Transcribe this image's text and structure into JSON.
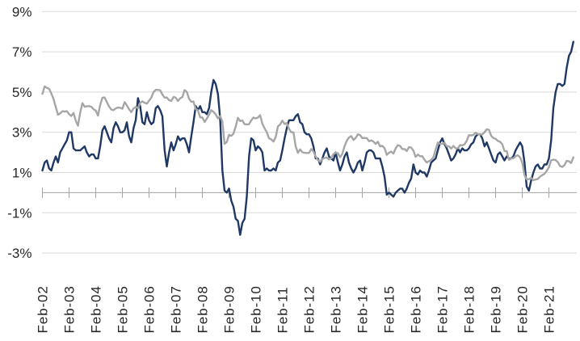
{
  "chart_data": {
    "type": "line",
    "title": "",
    "legend_position": "none",
    "grid": "horizontal",
    "x_tick_labels": [
      "Feb-02",
      "Feb-03",
      "Feb-04",
      "Feb-05",
      "Feb-06",
      "Feb-07",
      "Feb-08",
      "Feb-09",
      "Feb-10",
      "Feb-11",
      "Feb-12",
      "Feb-13",
      "Feb-14",
      "Feb-15",
      "Feb-16",
      "Feb-17",
      "Feb-18",
      "Feb-19",
      "Feb-20",
      "Feb-21"
    ],
    "x_unit": "month",
    "x_range": [
      "Feb-02",
      "Jan-22"
    ],
    "y_tick_labels": [
      "9%",
      "7%",
      "5%",
      "3%",
      "1%",
      "-1%",
      "-3%"
    ],
    "y_ticks": [
      9,
      7,
      5,
      3,
      1,
      -1,
      -3
    ],
    "ylim": [
      -3.9,
      9.6
    ],
    "axis_color": "#a3a3a3",
    "gridline_color": "#d9d9d9",
    "label_color": "#262626",
    "series": [
      {
        "name": "series-navy",
        "color": "#1f3864",
        "values": [
          1.1,
          1.5,
          1.6,
          1.2,
          1.1,
          1.5,
          1.8,
          1.5,
          2.0,
          2.2,
          2.4,
          2.6,
          3.0,
          3.0,
          2.2,
          2.1,
          2.1,
          2.1,
          2.2,
          2.3,
          2.0,
          1.8,
          1.9,
          1.9,
          1.7,
          1.7,
          2.3,
          3.1,
          3.3,
          3.0,
          2.7,
          2.5,
          3.2,
          3.5,
          3.3,
          3.0,
          3.0,
          3.1,
          3.5,
          2.8,
          2.5,
          3.2,
          3.6,
          4.7,
          4.3,
          3.5,
          3.4,
          4.0,
          3.6,
          3.4,
          3.5,
          4.2,
          4.3,
          4.1,
          3.8,
          2.1,
          1.3,
          2.0,
          2.5,
          2.1,
          2.4,
          2.8,
          2.6,
          2.7,
          2.7,
          2.4,
          2.0,
          2.8,
          3.5,
          4.3,
          4.1,
          4.3,
          4.0,
          4.0,
          3.9,
          4.2,
          5.0,
          5.6,
          5.4,
          4.9,
          3.7,
          1.1,
          0.1,
          0.0,
          0.2,
          -0.4,
          -0.7,
          -1.3,
          -1.4,
          -2.1,
          -1.5,
          -1.3,
          -0.2,
          1.8,
          2.7,
          2.6,
          2.1,
          2.3,
          2.2,
          2.0,
          1.1,
          1.2,
          1.1,
          1.1,
          1.2,
          1.1,
          1.5,
          1.6,
          2.1,
          2.7,
          3.2,
          3.6,
          3.6,
          3.6,
          3.8,
          3.9,
          3.5,
          3.4,
          3.0,
          2.9,
          2.9,
          2.7,
          2.3,
          1.7,
          1.7,
          1.4,
          1.7,
          2.0,
          2.2,
          1.8,
          1.7,
          1.6,
          2.0,
          1.5,
          1.1,
          1.4,
          1.8,
          2.0,
          1.5,
          1.2,
          1.0,
          1.2,
          1.5,
          1.6,
          1.1,
          1.5,
          2.0,
          2.1,
          2.1,
          2.0,
          1.7,
          1.7,
          1.7,
          1.3,
          0.8,
          -0.1,
          0.0,
          -0.1,
          -0.2,
          0.0,
          0.1,
          0.2,
          0.2,
          0.0,
          0.2,
          0.5,
          0.7,
          1.4,
          1.0,
          0.9,
          1.1,
          1.0,
          1.0,
          0.8,
          1.1,
          1.5,
          1.6,
          1.7,
          2.1,
          2.5,
          2.7,
          2.4,
          2.2,
          1.9,
          1.6,
          1.7,
          1.9,
          2.2,
          2.0,
          2.2,
          2.1,
          2.1,
          2.2,
          2.4,
          2.5,
          2.8,
          2.9,
          2.9,
          2.7,
          2.3,
          2.5,
          2.2,
          1.9,
          1.6,
          1.5,
          1.9,
          2.0,
          1.8,
          1.6,
          1.8,
          1.7,
          1.7,
          1.8,
          2.1,
          2.3,
          2.5,
          2.3,
          1.5,
          0.3,
          0.1,
          0.6,
          1.0,
          1.3,
          1.4,
          1.2,
          1.2,
          1.4,
          1.4,
          1.7,
          2.6,
          4.2,
          5.0,
          5.4,
          5.4,
          5.3,
          5.4,
          6.2,
          6.8,
          7.0,
          7.5
        ]
      },
      {
        "name": "series-gray",
        "color": "#a6a6a6",
        "values": [
          4.91,
          5.28,
          5.21,
          5.16,
          4.93,
          4.65,
          4.26,
          3.87,
          3.94,
          4.05,
          4.03,
          4.05,
          3.9,
          3.81,
          3.96,
          3.57,
          3.33,
          3.98,
          4.45,
          4.27,
          4.29,
          4.3,
          4.27,
          4.15,
          4.08,
          3.83,
          4.35,
          4.72,
          4.73,
          4.5,
          4.28,
          4.13,
          4.1,
          4.19,
          4.23,
          4.22,
          4.17,
          4.5,
          4.34,
          4.14,
          4.0,
          4.18,
          4.26,
          4.2,
          4.46,
          4.54,
          4.47,
          4.42,
          4.57,
          4.72,
          4.99,
          5.11,
          5.11,
          5.09,
          4.88,
          4.72,
          4.73,
          4.6,
          4.56,
          4.76,
          4.72,
          4.56,
          4.69,
          4.75,
          5.1,
          5.0,
          4.67,
          4.52,
          4.53,
          4.15,
          4.1,
          3.74,
          3.74,
          3.51,
          3.68,
          3.88,
          4.1,
          4.01,
          3.89,
          3.69,
          3.81,
          3.53,
          2.42,
          2.52,
          2.87,
          2.82,
          2.93,
          3.29,
          3.72,
          3.56,
          3.59,
          3.4,
          3.39,
          3.4,
          3.59,
          3.73,
          3.69,
          3.73,
          3.85,
          3.42,
          3.2,
          3.01,
          2.7,
          2.65,
          2.54,
          2.76,
          3.29,
          3.39,
          3.58,
          3.41,
          3.46,
          3.17,
          3.0,
          3.0,
          2.3,
          1.98,
          2.15,
          2.01,
          1.98,
          1.97,
          1.97,
          2.17,
          2.05,
          1.8,
          1.62,
          1.53,
          1.68,
          1.72,
          1.75,
          1.65,
          1.72,
          1.91,
          1.98,
          1.96,
          1.76,
          1.93,
          2.3,
          2.58,
          2.74,
          2.81,
          2.62,
          2.72,
          2.9,
          2.86,
          2.71,
          2.72,
          2.71,
          2.56,
          2.6,
          2.54,
          2.42,
          2.53,
          2.3,
          2.33,
          2.21,
          1.88,
          1.98,
          2.04,
          1.94,
          2.2,
          2.36,
          2.32,
          2.17,
          2.17,
          2.07,
          2.26,
          2.24,
          2.09,
          1.78,
          1.89,
          1.81,
          1.81,
          1.64,
          1.5,
          1.56,
          1.63,
          1.76,
          2.14,
          2.49,
          2.43,
          2.42,
          2.48,
          2.3,
          2.3,
          2.19,
          2.32,
          2.21,
          2.2,
          2.36,
          2.35,
          2.4,
          2.58,
          2.86,
          2.84,
          2.87,
          2.98,
          2.91,
          2.89,
          2.89,
          3.0,
          3.15,
          3.12,
          2.83,
          2.71,
          2.68,
          2.57,
          2.53,
          2.4,
          2.07,
          2.06,
          1.63,
          1.7,
          1.71,
          1.81,
          1.86,
          1.76,
          1.5,
          0.87,
          0.66,
          0.67,
          0.73,
          0.62,
          0.65,
          0.68,
          0.79,
          0.87,
          0.93,
          1.08,
          1.26,
          1.61,
          1.64,
          1.62,
          1.52,
          1.32,
          1.28,
          1.37,
          1.58,
          1.56,
          1.47,
          1.76
        ]
      }
    ]
  }
}
